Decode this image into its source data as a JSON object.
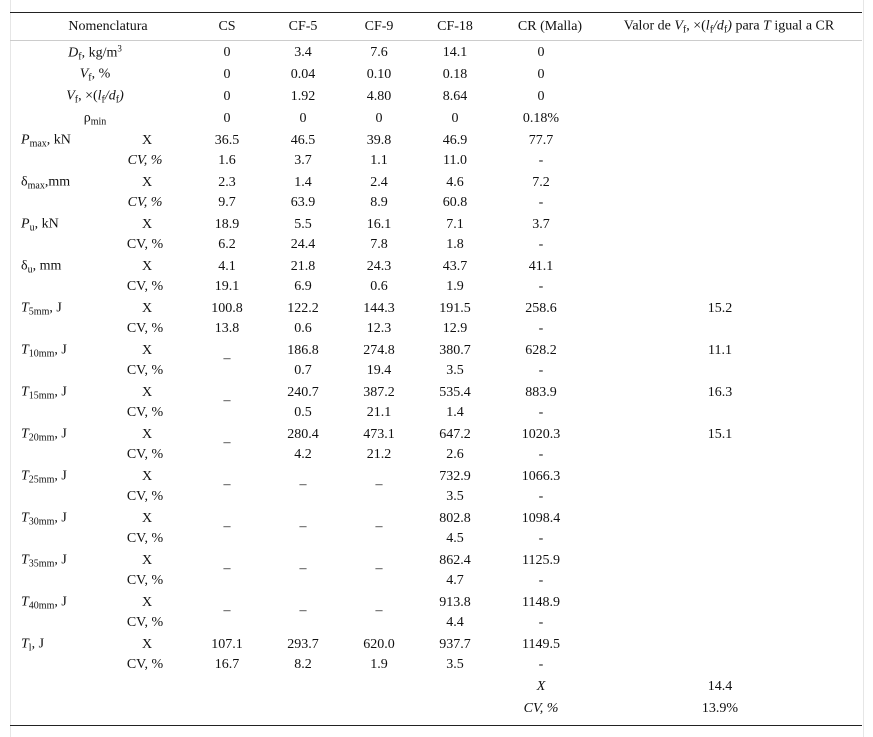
{
  "header": {
    "nomenclatura": "Nomenclatura",
    "columns": [
      "CS",
      "CF-5",
      "CF-9",
      "CF-18",
      "CR (Malla)"
    ],
    "valor": {
      "pre": "Valor de ",
      "V": "V",
      "f": "f",
      "mid": ", ×(",
      "l": "l",
      "lf": "f",
      "slash": "/",
      "d": "d",
      "df": "f",
      "close": ")",
      "para": " para ",
      "T": "T",
      "post": " igual a CR"
    }
  },
  "simple_rows": [
    {
      "sym": "D",
      "sub": "f",
      "unit": ", kg/m",
      "sup": "3",
      "values": [
        "0",
        "3.4",
        "7.6",
        "14.1",
        "0"
      ]
    },
    {
      "sym": "V",
      "sub": "f",
      "unit": ", %",
      "values": [
        "0",
        "0.04",
        "0.10",
        "0.18",
        "0"
      ]
    },
    {
      "sym": "V",
      "sub": "f",
      "unit": ", ×(l/d)",
      "unit_parts": {
        "a": ", ×(",
        "l": "l",
        "lf": "f",
        "s": "/",
        "d": "d",
        "df": "f",
        "c": ")"
      },
      "values": [
        "0",
        "1.92",
        "4.80",
        "8.64",
        "0"
      ]
    },
    {
      "sym": "ρ",
      "sub": "min",
      "unit": "",
      "upright": true,
      "values": [
        "0",
        "0",
        "0",
        "0",
        "0.18%"
      ]
    }
  ],
  "groups": [
    {
      "sym": "P",
      "sub": "max",
      "unit": ", kN",
      "x_label": "X",
      "cv_label": "CV, %",
      "cv_italic": true,
      "x": [
        "36.5",
        "46.5",
        "39.8",
        "46.9",
        "77.7",
        ""
      ],
      "cv": [
        "1.6",
        "3.7",
        "1.1",
        "11.0",
        "-",
        ""
      ]
    },
    {
      "sym": "δ",
      "sub": "max",
      "unit": ",mm",
      "upright": true,
      "x_label": "X",
      "cv_label": "CV, %",
      "cv_italic": true,
      "x": [
        "2.3",
        "1.4",
        "2.4",
        "4.6",
        "7.2",
        ""
      ],
      "cv": [
        "9.7",
        "63.9",
        "8.9",
        "60.8",
        "-",
        ""
      ]
    },
    {
      "sym": "P",
      "sub": "u",
      "unit": ", kN",
      "x_label": "X",
      "cv_label": "CV, %",
      "x": [
        "18.9",
        "5.5",
        "16.1",
        "7.1",
        "3.7",
        ""
      ],
      "cv": [
        "6.2",
        "24.4",
        "7.8",
        "1.8",
        "-",
        ""
      ]
    },
    {
      "sym": "δ",
      "sub": "u",
      "unit": ", mm",
      "upright": true,
      "x_label": "X",
      "cv_label": "CV, %",
      "x": [
        "4.1",
        "21.8",
        "24.3",
        "43.7",
        "41.1",
        ""
      ],
      "cv": [
        "19.1",
        "6.9",
        "0.6",
        "1.9",
        "-",
        ""
      ]
    },
    {
      "sym": "T",
      "sub": "5mm",
      "unit": ", J",
      "x_label": "X",
      "cv_label": "CV, %",
      "x": [
        "100.8",
        "122.2",
        "144.3",
        "191.5",
        "258.6",
        "15.2"
      ],
      "cv": [
        "13.8",
        "0.6",
        "12.3",
        "12.9",
        "-",
        ""
      ]
    },
    {
      "sym": "T",
      "sub": "10mm",
      "unit": ", J",
      "x_label": "X",
      "cv_label": "CV, %",
      "x": [
        "–",
        "186.8",
        "274.8",
        "380.7",
        "628.2",
        "11.1"
      ],
      "cv": [
        "",
        "0.7",
        "19.4",
        "3.5",
        "-",
        ""
      ]
    },
    {
      "sym": "T",
      "sub": "15mm",
      "unit": ", J",
      "x_label": "X",
      "cv_label": "CV, %",
      "x": [
        "–",
        "240.7",
        "387.2",
        "535.4",
        "883.9",
        "16.3"
      ],
      "cv": [
        "",
        "0.5",
        "21.1",
        "1.4",
        "-",
        ""
      ]
    },
    {
      "sym": "T",
      "sub": "20mm",
      "unit": ", J",
      "x_label": "X",
      "cv_label": "CV, %",
      "x": [
        "–",
        "280.4",
        "473.1",
        "647.2",
        "1020.3",
        "15.1"
      ],
      "cv": [
        "",
        "4.2",
        "21.2",
        "2.6",
        "-",
        ""
      ]
    },
    {
      "sym": "T",
      "sub": "25mm",
      "unit": ", J",
      "x_label": "X",
      "cv_label": "CV, %",
      "x": [
        "–",
        "–",
        "–",
        "732.9",
        "1066.3",
        ""
      ],
      "cv": [
        "",
        "",
        "",
        "3.5",
        "-",
        ""
      ]
    },
    {
      "sym": "T",
      "sub": "30mm",
      "unit": ", J",
      "x_label": "X",
      "cv_label": "CV, %",
      "x": [
        "–",
        "–",
        "–",
        "802.8",
        "1098.4",
        ""
      ],
      "cv": [
        "",
        "",
        "",
        "4.5",
        "-",
        ""
      ]
    },
    {
      "sym": "T",
      "sub": "35mm",
      "unit": ", J",
      "x_label": "X",
      "cv_label": "CV, %",
      "x": [
        "–",
        "–",
        "–",
        "862.4",
        "1125.9",
        ""
      ],
      "cv": [
        "",
        "",
        "",
        "4.7",
        "-",
        ""
      ]
    },
    {
      "sym": "T",
      "sub": "40mm",
      "unit": ", J",
      "x_label": "X",
      "cv_label": "CV, %",
      "x": [
        "–",
        "–",
        "–",
        "913.8",
        "1148.9",
        ""
      ],
      "cv": [
        "",
        "",
        "",
        "4.4",
        "-",
        ""
      ]
    },
    {
      "sym": "T",
      "sub": "l",
      "unit": ", J",
      "x_label": "X",
      "cv_label": "CV, %",
      "x": [
        "107.1",
        "293.7",
        "620.0",
        "937.7",
        "1149.5",
        ""
      ],
      "cv": [
        "16.7",
        "8.2",
        "1.9",
        "3.5",
        "-",
        ""
      ]
    }
  ],
  "summary": {
    "x_label": "X",
    "x_value": "14.4",
    "cv_label": "CV, %",
    "cv_value": "13.9%"
  }
}
